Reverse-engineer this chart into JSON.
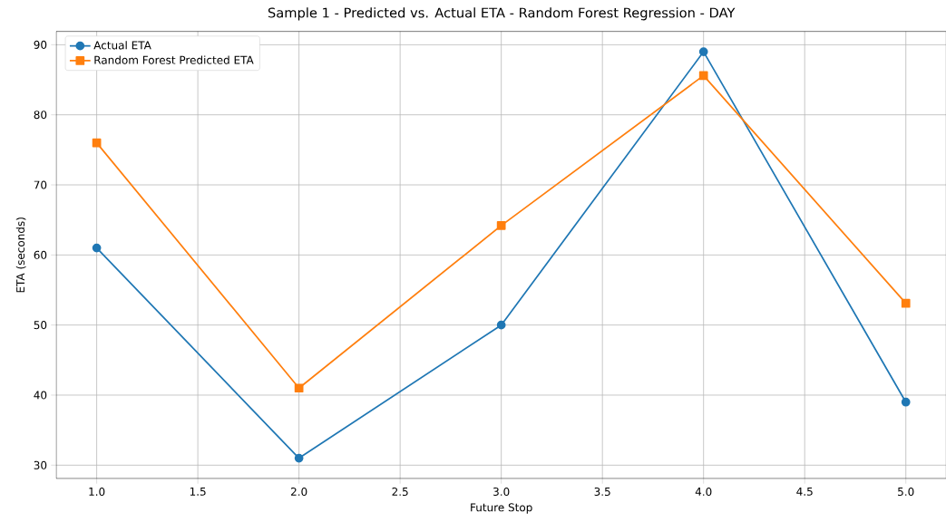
{
  "chart_data": {
    "type": "line",
    "title": "Sample 1 - Predicted vs. Actual ETA - Random Forest Regression - DAY",
    "xlabel": "Future Stop",
    "ylabel": "ETA (seconds)",
    "x": [
      1,
      2,
      3,
      4,
      5
    ],
    "series": [
      {
        "name": "Actual ETA",
        "color": "#1f77b4",
        "marker": "circle",
        "values": [
          61,
          31,
          50,
          89,
          39
        ]
      },
      {
        "name": "Random Forest Predicted ETA",
        "color": "#ff7f0e",
        "marker": "square",
        "values": [
          76,
          41,
          64.2,
          85.6,
          53.1
        ]
      }
    ],
    "xlim": [
      0.8,
      5.2
    ],
    "ylim": [
      28.1,
      91.9
    ],
    "xticks": [
      {
        "value": 1,
        "label": "1.0"
      },
      {
        "value": 1.5,
        "label": "1.5"
      },
      {
        "value": 2,
        "label": "2.0"
      },
      {
        "value": 2.5,
        "label": "2.5"
      },
      {
        "value": 3,
        "label": "3.0"
      },
      {
        "value": 3.5,
        "label": "3.5"
      },
      {
        "value": 4,
        "label": "4.0"
      },
      {
        "value": 4.5,
        "label": "4.5"
      },
      {
        "value": 5,
        "label": "5.0"
      }
    ],
    "yticks": [
      30,
      40,
      50,
      60,
      70,
      80,
      90
    ],
    "grid": true,
    "legend": "top left",
    "line_style": "solid"
  }
}
